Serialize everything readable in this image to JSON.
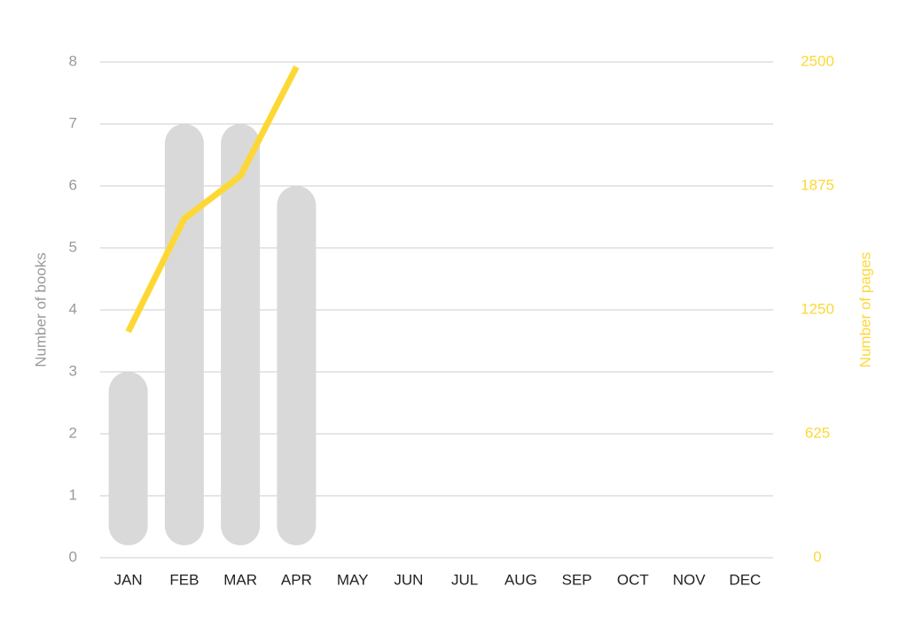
{
  "chart_data": {
    "type": "bar",
    "categories": [
      "JAN",
      "FEB",
      "MAR",
      "APR",
      "MAY",
      "JUN",
      "JUL",
      "AUG",
      "SEP",
      "OCT",
      "NOV",
      "DEC"
    ],
    "y_label": "Number of books",
    "y2_label": "Number of pages",
    "series": [
      {
        "type": "bar",
        "color": "#d9d9d9",
        "values": [
          3,
          7,
          7,
          6,
          null,
          null,
          null,
          null,
          null,
          null,
          null,
          null
        ]
      },
      {
        "type": "line",
        "axis": "y2",
        "color": "#fdd835",
        "values": [
          1140,
          1710,
          1925,
          2475,
          null,
          null,
          null,
          null,
          null,
          null,
          null,
          null
        ]
      }
    ],
    "ylim": [
      0,
      8
    ],
    "yticks": [
      0,
      1,
      2,
      3,
      4,
      5,
      6,
      7,
      8
    ],
    "y2lim": [
      0,
      2500
    ],
    "y2ticks": [
      0,
      625,
      1250,
      1875,
      2500
    ],
    "grid": true
  }
}
